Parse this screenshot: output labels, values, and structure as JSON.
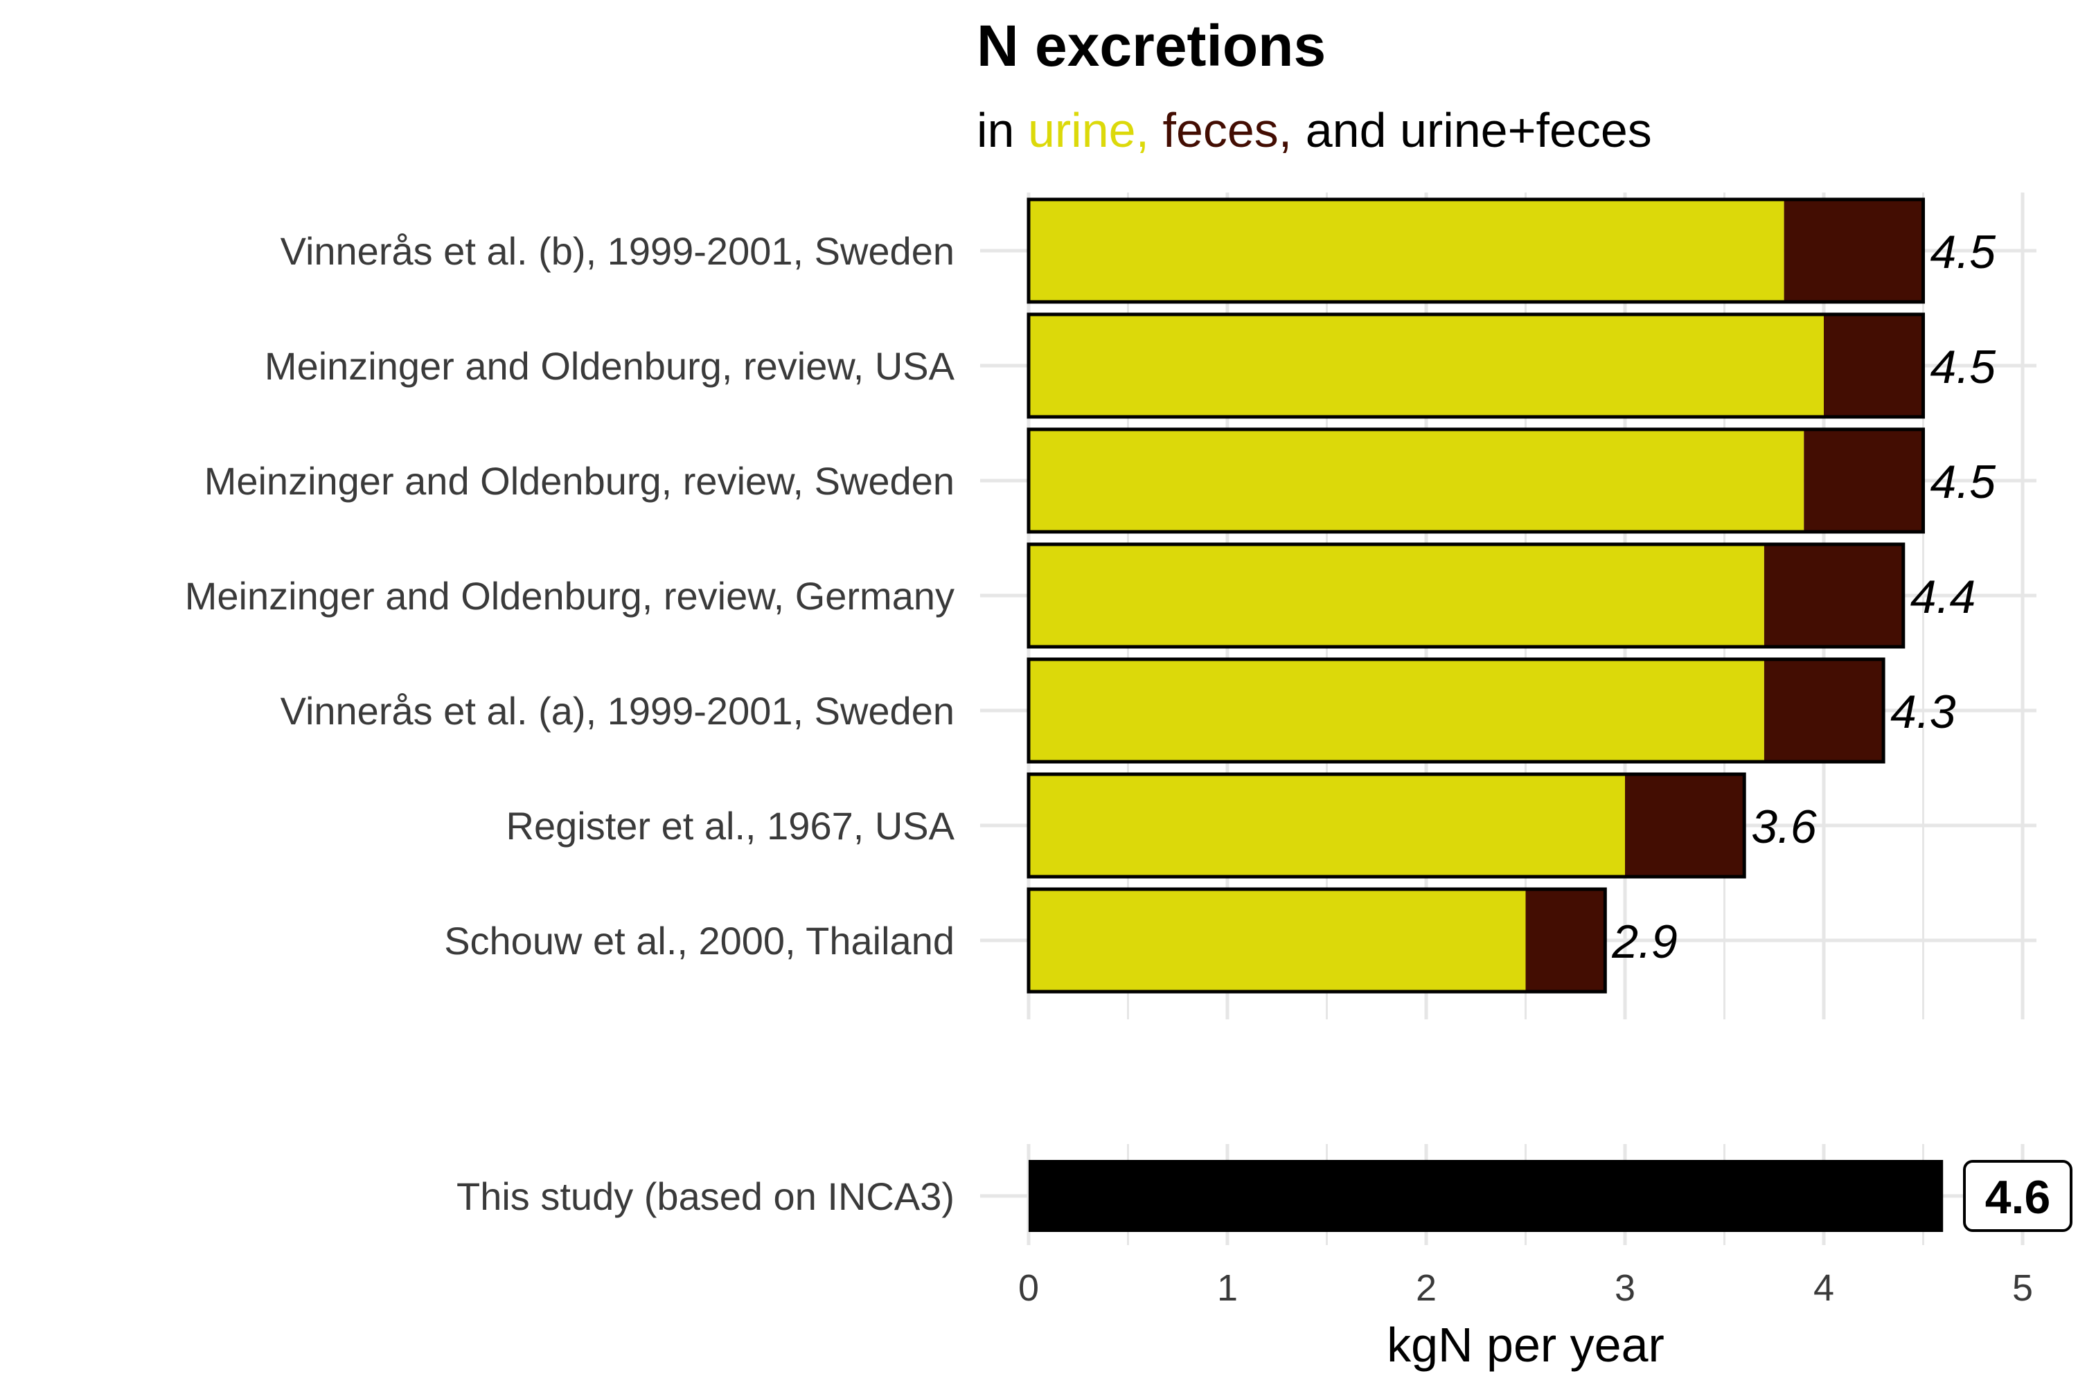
{
  "chart_data": {
    "type": "bar",
    "orientation": "horizontal",
    "stacked": true,
    "title": "N excretions",
    "subtitle": {
      "prefix": "in ",
      "urine": "urine,",
      "feces": "feces,",
      "suffix": "and urine+feces"
    },
    "xlabel": "kgN per year",
    "xlim": [
      0,
      5
    ],
    "xticks": [
      "0",
      "1",
      "2",
      "3",
      "4",
      "5"
    ],
    "grid": true,
    "colors": {
      "urine": "#dcd90a",
      "feces": "#430d02",
      "this_study": "#000000",
      "grid": "#e6e6e6"
    },
    "categories": [
      "Vinnerås et al. (b), 1999-2001, Sweden",
      "Meinzinger and Oldenburg, review, USA",
      "Meinzinger and Oldenburg, review, Sweden",
      "Meinzinger and Oldenburg, review, Germany",
      "Vinnerås et al. (a), 1999-2001, Sweden",
      "Register et al., 1967, USA",
      "Schouw et al., 2000, Thailand"
    ],
    "series": [
      {
        "name": "urine",
        "values": [
          3.8,
          4.0,
          3.9,
          3.7,
          3.7,
          3.0,
          2.5
        ]
      },
      {
        "name": "feces",
        "values": [
          0.7,
          0.5,
          0.6,
          0.7,
          0.6,
          0.6,
          0.4
        ]
      }
    ],
    "totals_labels": [
      "4.5",
      "4.5",
      "4.5",
      "4.4",
      "4.3",
      "3.6",
      "2.9"
    ],
    "this_study": {
      "category": "This study (based on INCA3)",
      "value": 4.6,
      "label": "4.6"
    }
  }
}
